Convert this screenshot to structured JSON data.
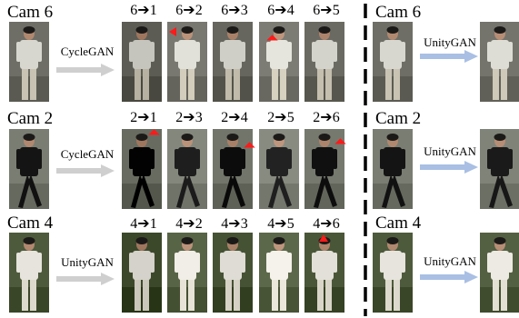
{
  "rows": [
    {
      "cam_label": "Cam 6",
      "gan_left": "CycleGAN",
      "gan_right": "UnityGAN",
      "transfer_labels": [
        "6➔1",
        "6➔2",
        "6➔3",
        "6➔4",
        "6➔5"
      ],
      "right_cam_label": "Cam 6",
      "person": {
        "top": "#d7d7d0",
        "pants": "#c8c3b2",
        "bg": "#6f6e66"
      }
    },
    {
      "cam_label": "Cam 2",
      "gan_left": "CycleGAN",
      "gan_right": "UnityGAN",
      "transfer_labels": [
        "2➔1",
        "2➔3",
        "2➔4",
        "2➔5",
        "2➔6"
      ],
      "right_cam_label": "Cam 2",
      "person": {
        "top": "#141414",
        "pants": "#111111",
        "bg": "#7a7d72"
      }
    },
    {
      "cam_label": "Cam 4",
      "gan_left": "UnityGAN",
      "gan_right": "UnityGAN",
      "transfer_labels": [
        "4➔1",
        "4➔2",
        "4➔3",
        "4➔5",
        "4➔6"
      ],
      "right_cam_label": "Cam 4",
      "person": {
        "top": "#e6e4dc",
        "pants": "#ddd9cc",
        "bg": "#4e5a3c"
      }
    }
  ],
  "colors": {
    "arrow_gray": "#cfcfcf",
    "arrow_blue": "#a9bfe3",
    "marker_red": "#ff1a1a",
    "divider": "#000000"
  }
}
